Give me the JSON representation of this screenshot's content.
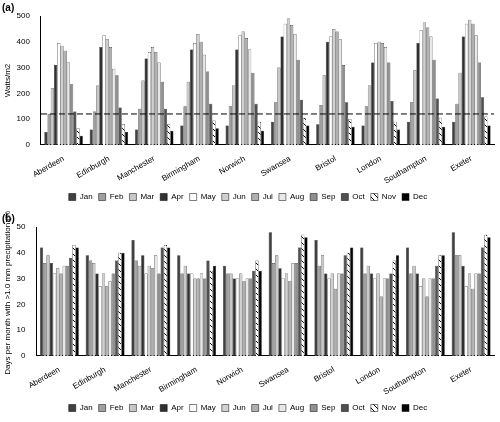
{
  "chart_data": [
    {
      "type": "bar",
      "title": "(a)",
      "y_label": "Watts/m2",
      "categories": [
        "Aberdeen",
        "Edinburgh",
        "Manchester",
        "Birmingham",
        "Norwich",
        "Swansea",
        "Bristol",
        "London",
        "Southampton",
        "Exeter"
      ],
      "series": [
        {
          "name": "Jan",
          "color": "#404040",
          "values": [
            50,
            60,
            60,
            75,
            75,
            90,
            80,
            75,
            90,
            90
          ]
        },
        {
          "name": "Feb",
          "color": "#a0a0a0",
          "values": [
            120,
            130,
            140,
            150,
            150,
            165,
            155,
            150,
            165,
            160
          ]
        },
        {
          "name": "Mar",
          "color": "#c8c8c8",
          "values": [
            220,
            230,
            250,
            245,
            230,
            300,
            270,
            230,
            290,
            280
          ]
        },
        {
          "name": "Apr",
          "color": "#303030",
          "values": [
            310,
            380,
            335,
            370,
            370,
            420,
            400,
            320,
            395,
            420
          ]
        },
        {
          "name": "May",
          "color": "#ffffff",
          "values": [
            395,
            425,
            360,
            395,
            425,
            470,
            420,
            395,
            445,
            470
          ]
        },
        {
          "name": "Jun",
          "color": "#d0d0d0",
          "values": [
            385,
            410,
            380,
            430,
            440,
            490,
            450,
            400,
            475,
            485
          ]
        },
        {
          "name": "Jul",
          "color": "#b0b0b0",
          "values": [
            365,
            380,
            360,
            400,
            415,
            465,
            440,
            395,
            455,
            470
          ]
        },
        {
          "name": "Aug",
          "color": "#e8e8e8",
          "values": [
            320,
            295,
            320,
            350,
            370,
            430,
            410,
            380,
            420,
            425
          ]
        },
        {
          "name": "Sep",
          "color": "#909090",
          "values": [
            235,
            270,
            245,
            285,
            280,
            330,
            310,
            320,
            330,
            320
          ]
        },
        {
          "name": "Oct",
          "color": "#505050",
          "values": [
            130,
            145,
            140,
            160,
            160,
            175,
            165,
            170,
            180,
            185
          ]
        },
        {
          "name": "Nov",
          "color": "#ffffff",
          "values": [
            65,
            80,
            80,
            95,
            90,
            105,
            100,
            90,
            105,
            110
          ]
        },
        {
          "name": "Dec",
          "color": "#000000",
          "values": [
            35,
            50,
            55,
            65,
            55,
            75,
            70,
            60,
            70,
            75
          ]
        }
      ],
      "reference_line": 120,
      "ylim": [
        0,
        500
      ],
      "yticks": [
        0,
        100,
        200,
        300,
        400,
        500
      ],
      "grid": false,
      "legend": "bottom"
    },
    {
      "type": "bar",
      "title": "(b)",
      "y_label": "Days per month with >1.0 mm precipitation (%)",
      "categories": [
        "Aberdeen",
        "Edinburgh",
        "Manchester",
        "Birmingham",
        "Norwich",
        "Swansea",
        "Bristol",
        "London",
        "Southampton",
        "Exeter"
      ],
      "series": [
        {
          "name": "Jan",
          "color": "#404040",
          "values": [
            42,
            39,
            45,
            39,
            35,
            48,
            45,
            42,
            42,
            48
          ]
        },
        {
          "name": "Feb",
          "color": "#a0a0a0",
          "values": [
            36,
            37,
            37,
            32,
            32,
            36,
            35,
            32,
            32,
            39
          ]
        },
        {
          "name": "Mar",
          "color": "#c8c8c8",
          "values": [
            39,
            36,
            35,
            35,
            32,
            39,
            39,
            35,
            35,
            39
          ]
        },
        {
          "name": "Apr",
          "color": "#303030",
          "values": [
            36,
            32,
            39,
            32,
            30,
            34,
            32,
            32,
            32,
            35
          ]
        },
        {
          "name": "May",
          "color": "#ffffff",
          "values": [
            32,
            27,
            32,
            32,
            30,
            30,
            30,
            30,
            27,
            27
          ]
        },
        {
          "name": "Jun",
          "color": "#d0d0d0",
          "values": [
            34,
            32,
            35,
            30,
            32,
            32,
            32,
            32,
            30,
            32
          ]
        },
        {
          "name": "Jul",
          "color": "#b0b0b0",
          "values": [
            32,
            27,
            34,
            30,
            29,
            29,
            26,
            23,
            23,
            26
          ]
        },
        {
          "name": "Aug",
          "color": "#e8e8e8",
          "values": [
            35,
            29,
            39,
            32,
            30,
            36,
            32,
            30,
            30,
            32
          ]
        },
        {
          "name": "Sep",
          "color": "#909090",
          "values": [
            35,
            32,
            32,
            30,
            30,
            36,
            32,
            30,
            30,
            32
          ]
        },
        {
          "name": "Oct",
          "color": "#505050",
          "values": [
            38,
            37,
            42,
            37,
            33,
            42,
            39,
            32,
            35,
            42
          ]
        },
        {
          "name": "Nov",
          "color": "#ffffff",
          "values": [
            43,
            40,
            43,
            33,
            37,
            47,
            40,
            37,
            39,
            47
          ]
        },
        {
          "name": "Dec",
          "color": "#000000",
          "values": [
            42,
            40,
            42,
            35,
            33,
            46,
            42,
            39,
            39,
            46
          ]
        }
      ],
      "ylim": [
        0,
        50
      ],
      "yticks": [
        0,
        10,
        20,
        30,
        40,
        50
      ],
      "grid": false,
      "legend": "bottom"
    }
  ]
}
